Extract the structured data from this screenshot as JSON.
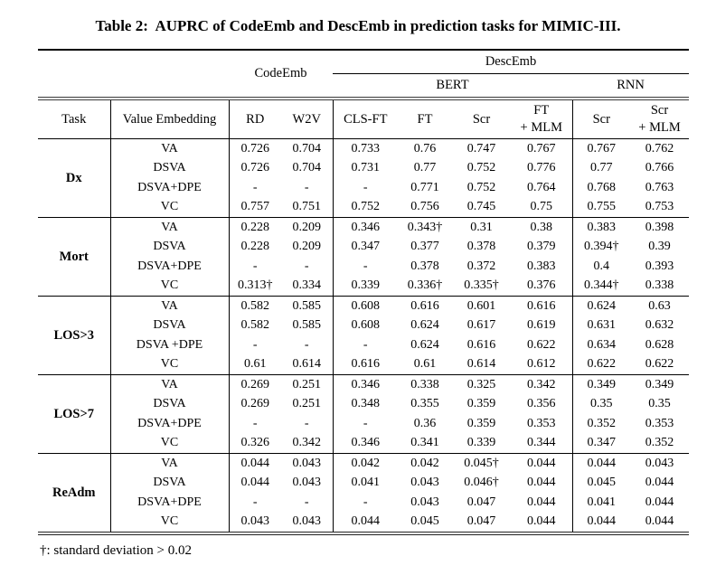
{
  "caption": "Table 2:  AUPRC of CodeEmb and DescEmb in prediction tasks for MIMIC-III.",
  "footnote": "†: standard deviation > 0.02",
  "table": {
    "group_headers": {
      "codeemb": "CodeEmb",
      "descemb": "DescEmb",
      "bert": "BERT",
      "rnn": "RNN"
    },
    "columns": [
      "Task",
      "Value Embedding",
      "RD",
      "W2V",
      "CLS-FT",
      "FT",
      "Scr",
      "FT\n+ MLM",
      "Scr",
      "Scr\n+ MLM"
    ],
    "sections": [
      {
        "task": "Dx",
        "rows": [
          {
            "value_embedding": "VA",
            "values": [
              "0.726",
              "0.704",
              "0.733",
              "0.76",
              "0.747",
              "0.767",
              "0.767",
              "0.762"
            ]
          },
          {
            "value_embedding": "DSVA",
            "values": [
              "0.726",
              "0.704",
              "0.731",
              "0.77",
              "0.752",
              "0.776",
              "0.77",
              "0.766"
            ]
          },
          {
            "value_embedding": "DSVA+DPE",
            "values": [
              "-",
              "-",
              "-",
              "0.771",
              "0.752",
              "0.764",
              "0.768",
              "0.763"
            ]
          },
          {
            "value_embedding": "VC",
            "values": [
              "0.757",
              "0.751",
              "0.752",
              "0.756",
              "0.745",
              "0.75",
              "0.755",
              "0.753"
            ]
          }
        ]
      },
      {
        "task": "Mort",
        "rows": [
          {
            "value_embedding": "VA",
            "values": [
              "0.228",
              "0.209",
              "0.346",
              "0.343†",
              "0.31",
              "0.38",
              "0.383",
              "0.398"
            ]
          },
          {
            "value_embedding": "DSVA",
            "values": [
              "0.228",
              "0.209",
              "0.347",
              "0.377",
              "0.378",
              "0.379",
              "0.394†",
              "0.39"
            ]
          },
          {
            "value_embedding": "DSVA+DPE",
            "values": [
              "-",
              "-",
              "-",
              "0.378",
              "0.372",
              "0.383",
              "0.4",
              "0.393"
            ]
          },
          {
            "value_embedding": "VC",
            "values": [
              "0.313†",
              "0.334",
              "0.339",
              "0.336†",
              "0.335†",
              "0.376",
              "0.344†",
              "0.338"
            ]
          }
        ]
      },
      {
        "task": "LOS>3",
        "rows": [
          {
            "value_embedding": "VA",
            "values": [
              "0.582",
              "0.585",
              "0.608",
              "0.616",
              "0.601",
              "0.616",
              "0.624",
              "0.63"
            ]
          },
          {
            "value_embedding": "DSVA",
            "values": [
              "0.582",
              "0.585",
              "0.608",
              "0.624",
              "0.617",
              "0.619",
              "0.631",
              "0.632"
            ]
          },
          {
            "value_embedding": "DSVA +DPE",
            "values": [
              "-",
              "-",
              "-",
              "0.624",
              "0.616",
              "0.622",
              "0.634",
              "0.628"
            ]
          },
          {
            "value_embedding": "VC",
            "values": [
              "0.61",
              "0.614",
              "0.616",
              "0.61",
              "0.614",
              "0.612",
              "0.622",
              "0.622"
            ]
          }
        ]
      },
      {
        "task": "LOS>7",
        "rows": [
          {
            "value_embedding": "VA",
            "values": [
              "0.269",
              "0.251",
              "0.346",
              "0.338",
              "0.325",
              "0.342",
              "0.349",
              "0.349"
            ]
          },
          {
            "value_embedding": "DSVA",
            "values": [
              "0.269",
              "0.251",
              "0.348",
              "0.355",
              "0.359",
              "0.356",
              "0.35",
              "0.35"
            ]
          },
          {
            "value_embedding": "DSVA+DPE",
            "values": [
              "-",
              "-",
              "-",
              "0.36",
              "0.359",
              "0.353",
              "0.352",
              "0.353"
            ]
          },
          {
            "value_embedding": "VC",
            "values": [
              "0.326",
              "0.342",
              "0.346",
              "0.341",
              "0.339",
              "0.344",
              "0.347",
              "0.352"
            ]
          }
        ]
      },
      {
        "task": "ReAdm",
        "rows": [
          {
            "value_embedding": "VA",
            "values": [
              "0.044",
              "0.043",
              "0.042",
              "0.042",
              "0.045†",
              "0.044",
              "0.044",
              "0.043"
            ]
          },
          {
            "value_embedding": "DSVA",
            "values": [
              "0.044",
              "0.043",
              "0.041",
              "0.043",
              "0.046†",
              "0.044",
              "0.045",
              "0.044"
            ]
          },
          {
            "value_embedding": "DSVA+DPE",
            "values": [
              "-",
              "-",
              "-",
              "0.043",
              "0.047",
              "0.044",
              "0.041",
              "0.044"
            ]
          },
          {
            "value_embedding": "VC",
            "values": [
              "0.043",
              "0.043",
              "0.044",
              "0.045",
              "0.047",
              "0.044",
              "0.044",
              "0.044"
            ]
          }
        ]
      }
    ]
  }
}
